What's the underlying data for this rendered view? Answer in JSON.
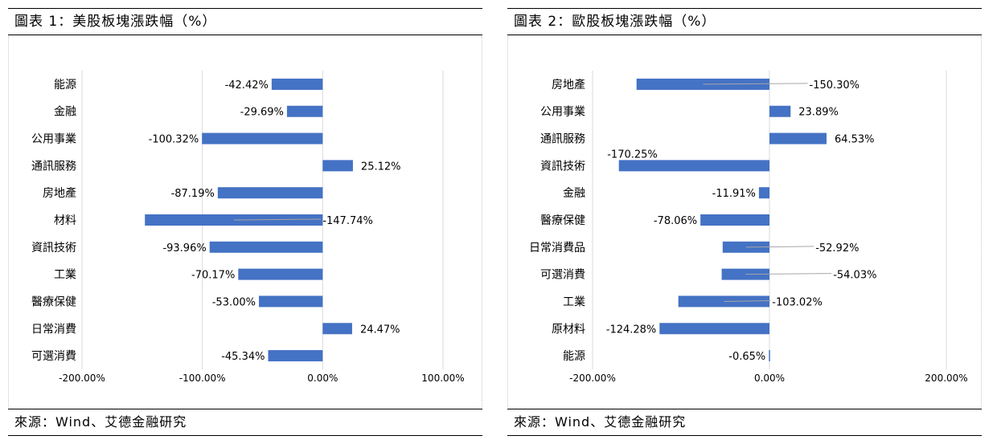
{
  "charts": {
    "left": {
      "title": "圖表 1：美股板塊漲跌幅（%）",
      "source": "來源：Wind、艾德金融研究"
    },
    "right": {
      "title": "圖表 2：歐股板塊漲跌幅（%）",
      "source": "來源：Wind、艾德金融研究"
    }
  },
  "colors": {
    "bar": "#4472C4",
    "grid": "#d9d9d9",
    "leader": "#a6a6a6"
  },
  "chart_data": [
    {
      "type": "bar",
      "orientation": "horizontal",
      "title": "圖表 1：美股板塊漲跌幅（%）",
      "categories": [
        "能源",
        "金融",
        "公用事業",
        "通訊服務",
        "房地產",
        "材料",
        "資訊技術",
        "工業",
        "醫療保健",
        "日常消費",
        "可選消費"
      ],
      "values": [
        -42.42,
        -29.69,
        -100.32,
        25.12,
        -87.19,
        -147.74,
        -93.96,
        -70.17,
        -53.0,
        24.47,
        -45.34
      ],
      "labels": [
        "-42.42%",
        "-29.69%",
        "-100.32%",
        "25.12%",
        "-87.19%",
        "-147.74%",
        "-93.96%",
        "-70.17%",
        "-53.00%",
        "24.47%",
        "-45.34%"
      ],
      "xlim": [
        -200,
        100
      ],
      "xticks": [
        -200,
        -100,
        0,
        100
      ],
      "xtick_labels": [
        "-200.00%",
        "-100.00%",
        "0.00%",
        "100.00%"
      ],
      "grid": true,
      "legend": "none"
    },
    {
      "type": "bar",
      "orientation": "horizontal",
      "title": "圖表 2：歐股板塊漲跌幅（%）",
      "categories": [
        "房地產",
        "公用事業",
        "通訊服務",
        "資訊技術",
        "金融",
        "醫療保健",
        "日常消費品",
        "可選消費",
        "工業",
        "原材料",
        "能源"
      ],
      "values": [
        -150.3,
        23.89,
        64.53,
        -170.25,
        -11.91,
        -78.06,
        -52.92,
        -54.03,
        -103.02,
        -124.28,
        -0.65
      ],
      "labels": [
        "-150.30%",
        "23.89%",
        "64.53%",
        "-170.25%",
        "-11.91%",
        "-78.06%",
        "-52.92%",
        "-54.03%",
        "-103.02%",
        "-124.28%",
        "-0.65%"
      ],
      "xlim": [
        -200,
        200
      ],
      "xticks": [
        -200,
        0,
        200
      ],
      "xtick_labels": [
        "-200.00%",
        "0.00%",
        "200.00%"
      ],
      "grid": true,
      "legend": "none"
    }
  ]
}
